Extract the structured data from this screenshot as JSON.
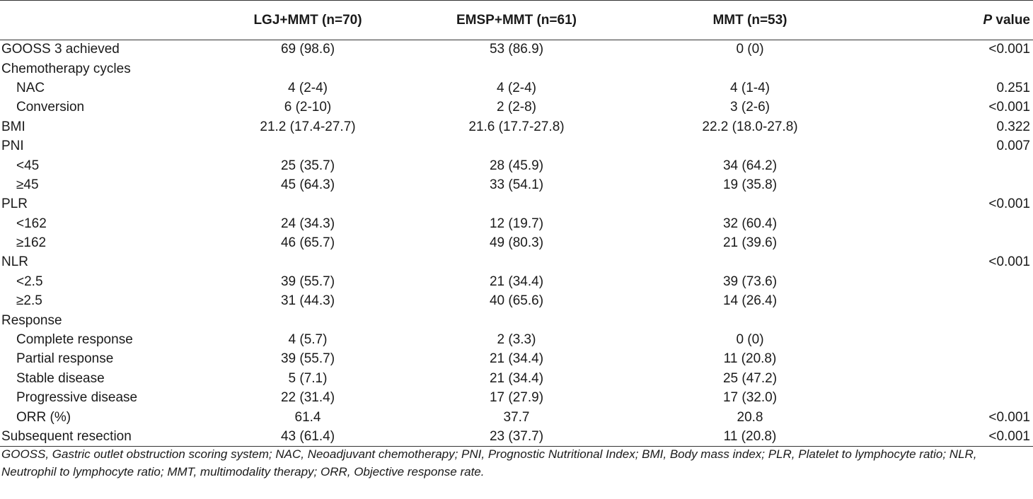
{
  "table": {
    "headers": {
      "blank": "",
      "lgj": "LGJ+MMT (n=70)",
      "emsp": "EMSP+MMT (n=61)",
      "mmt": "MMT (n=53)",
      "p_italic": "P",
      "p_rest": " value"
    },
    "rows": [
      {
        "label": "GOOSS 3 achieved",
        "lgj": "69 (98.6)",
        "emsp": "53 (86.9)",
        "mmt": "0 (0)",
        "p": "<0.001"
      },
      {
        "label": "Chemotherapy cycles",
        "lgj": "",
        "emsp": "",
        "mmt": "",
        "p": ""
      },
      {
        "label": "NAC",
        "lgj": "4 (2-4)",
        "emsp": "4 (2-4)",
        "mmt": "4 (1-4)",
        "p": "0.251"
      },
      {
        "label": "Conversion",
        "lgj": "6 (2-10)",
        "emsp": "2 (2-8)",
        "mmt": "3 (2-6)",
        "p": "<0.001"
      },
      {
        "label": "BMI",
        "lgj": "21.2 (17.4-27.7)",
        "emsp": "21.6 (17.7-27.8)",
        "mmt": "22.2 (18.0-27.8)",
        "p": "0.322"
      },
      {
        "label": "PNI",
        "lgj": "",
        "emsp": "",
        "mmt": "",
        "p": "0.007"
      },
      {
        "label": "<45",
        "lgj": "25 (35.7)",
        "emsp": "28 (45.9)",
        "mmt": "34 (64.2)",
        "p": ""
      },
      {
        "label": "≥45",
        "lgj": "45 (64.3)",
        "emsp": "33 (54.1)",
        "mmt": "19 (35.8)",
        "p": ""
      },
      {
        "label": "PLR",
        "lgj": "",
        "emsp": "",
        "mmt": "",
        "p": "<0.001"
      },
      {
        "label": "<162",
        "lgj": "24 (34.3)",
        "emsp": "12 (19.7)",
        "mmt": "32 (60.4)",
        "p": ""
      },
      {
        "label": "≥162",
        "lgj": "46 (65.7)",
        "emsp": "49 (80.3)",
        "mmt": "21 (39.6)",
        "p": ""
      },
      {
        "label": "NLR",
        "lgj": "",
        "emsp": "",
        "mmt": "",
        "p": "<0.001"
      },
      {
        "label": "<2.5",
        "lgj": "39 (55.7)",
        "emsp": "21 (34.4)",
        "mmt": "39 (73.6)",
        "p": ""
      },
      {
        "label": "≥2.5",
        "lgj": "31 (44.3)",
        "emsp": "40 (65.6)",
        "mmt": "14 (26.4)",
        "p": ""
      },
      {
        "label": "Response",
        "lgj": "",
        "emsp": "",
        "mmt": "",
        "p": ""
      },
      {
        "label": "Complete response",
        "lgj": "4 (5.7)",
        "emsp": "2 (3.3)",
        "mmt": "0 (0)",
        "p": ""
      },
      {
        "label": "Partial response",
        "lgj": "39 (55.7)",
        "emsp": "21 (34.4)",
        "mmt": "11 (20.8)",
        "p": ""
      },
      {
        "label": "Stable disease",
        "lgj": "5 (7.1)",
        "emsp": "21 (34.4)",
        "mmt": "25 (47.2)",
        "p": ""
      },
      {
        "label": "Progressive disease",
        "lgj": "22 (31.4)",
        "emsp": "17 (27.9)",
        "mmt": "17 (32.0)",
        "p": ""
      },
      {
        "label": "ORR (%)",
        "lgj": "61.4",
        "emsp": "37.7",
        "mmt": "20.8",
        "p": "<0.001"
      },
      {
        "label": "Subsequent resection",
        "lgj": "43 (61.4)",
        "emsp": "23 (37.7)",
        "mmt": "11 (20.8)",
        "p": "<0.001"
      }
    ]
  },
  "footnote": "GOOSS, Gastric outlet obstruction scoring system; NAC, Neoadjuvant chemotherapy; PNI, Prognostic Nutritional Index; BMI, Body mass index; PLR, Platelet to lymphocyte ratio; NLR, Neutrophil to lymphocyte ratio; MMT, multimodality therapy; ORR, Objective response rate."
}
